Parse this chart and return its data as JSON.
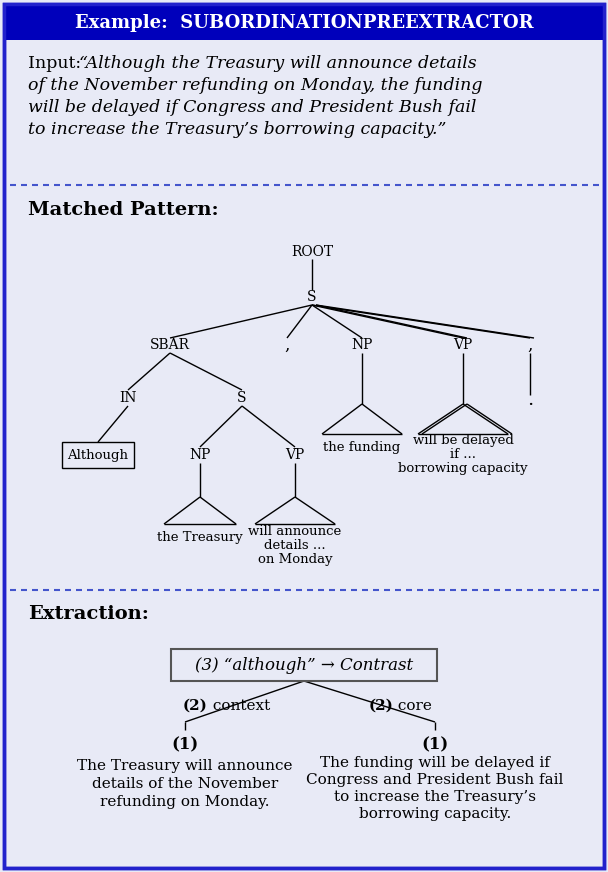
{
  "bg_color": "#E8EAF6",
  "title_bg": "#0000BB",
  "title_color": "#FFFFFF",
  "border_color": "#2222CC",
  "dash_color": "#4455CC",
  "tree_color": "#000000",
  "input_prefix": "Input: ",
  "input_lines": [
    "“Although the Treasury will announce details",
    "of the November refunding on Monday, the funding",
    "will be delayed if Congress and President Bush fail",
    "to increase the Treasury’s borrowing capacity.”"
  ],
  "matched_label": "Matched Pattern:",
  "extraction_label": "Extraction:",
  "root_box_text": "(3) “although” → Contrast",
  "left_edge_bold": "(2)",
  "left_edge_normal": " context",
  "right_edge_bold": "(2)",
  "right_edge_normal": " core",
  "left_level": "(1)",
  "left_text_lines": [
    "The Treasury will announce",
    "details of the November",
    "refunding on Monday."
  ],
  "right_level": "(1)",
  "right_text_lines": [
    "The funding will be delayed if",
    "Congress and President Bush fail",
    "to increase the Treasury’s",
    "borrowing capacity."
  ]
}
